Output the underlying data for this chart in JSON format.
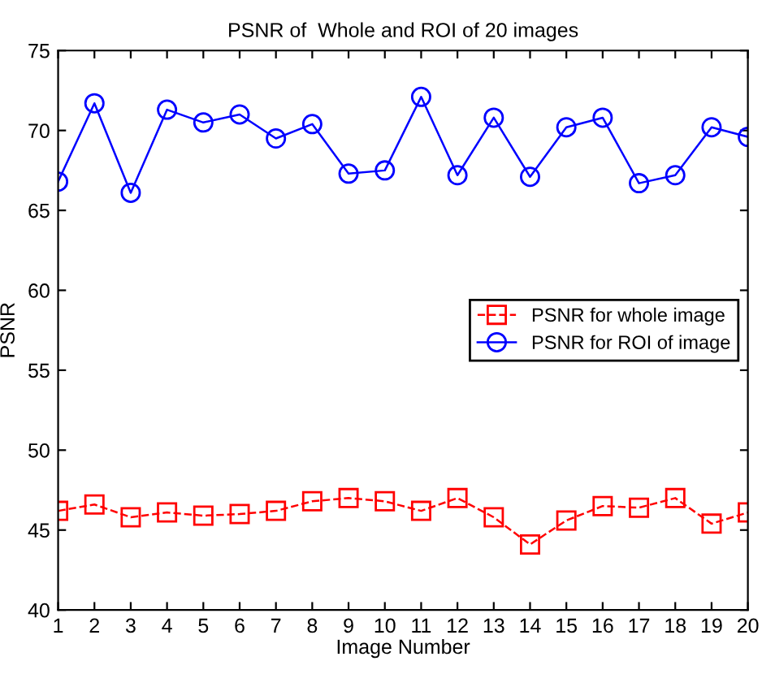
{
  "chart_data": {
    "type": "line",
    "title": "PSNR of  Whole and ROI of 20 images",
    "xlabel": "Image Number",
    "ylabel": "PSNR",
    "x": [
      1,
      2,
      3,
      4,
      5,
      6,
      7,
      8,
      9,
      10,
      11,
      12,
      13,
      14,
      15,
      16,
      17,
      18,
      19,
      20
    ],
    "series": [
      {
        "name": "PSNR for whole image",
        "color": "#ff0000",
        "marker": "square",
        "line_style": "dashed",
        "values": [
          46.2,
          46.6,
          45.8,
          46.1,
          45.9,
          46.0,
          46.2,
          46.8,
          47.0,
          46.8,
          46.2,
          47.0,
          45.8,
          44.1,
          45.6,
          46.5,
          46.4,
          47.0,
          45.4,
          46.1
        ]
      },
      {
        "name": "PSNR for ROI of image",
        "color": "#0000ff",
        "marker": "circle",
        "line_style": "solid",
        "values": [
          66.8,
          71.7,
          66.1,
          71.3,
          70.5,
          71.0,
          69.5,
          70.4,
          67.3,
          67.5,
          72.1,
          67.2,
          70.8,
          67.1,
          70.2,
          70.8,
          66.7,
          67.2,
          70.2,
          69.6
        ]
      }
    ],
    "xlim": [
      1,
      20
    ],
    "xticks": [
      1,
      2,
      3,
      4,
      5,
      6,
      7,
      8,
      9,
      10,
      11,
      12,
      13,
      14,
      15,
      16,
      17,
      18,
      19,
      20
    ],
    "ylim": [
      40,
      75
    ],
    "yticks": [
      40,
      45,
      50,
      55,
      60,
      65,
      70,
      75
    ],
    "grid": false,
    "legend": "center right"
  }
}
